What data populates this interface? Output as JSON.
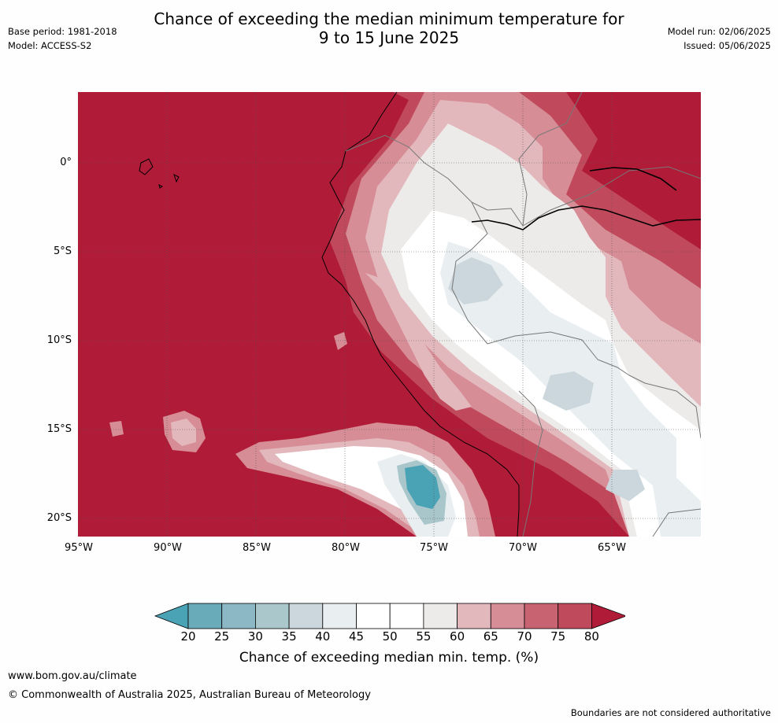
{
  "header": {
    "title_line1": "Chance of exceeding the median minimum temperature for",
    "title_line2": "9 to 15 June 2025",
    "base_period": "Base period: 1981-2018",
    "model": "Model: ACCESS-S2",
    "model_run": "Model run: 02/06/2025",
    "issued": "Issued: 05/06/2025"
  },
  "map": {
    "lat_labels": [
      "0°",
      "5°S",
      "10°S",
      "15°S",
      "20°S"
    ],
    "lon_labels": [
      "95°W",
      "90°W",
      "85°W",
      "80°W",
      "75°W",
      "70°W",
      "65°W"
    ],
    "colors": {
      "ocean_high": "#b01c38",
      "band_75": "#c04a5c",
      "band_70": "#d68d96",
      "band_65": "#e3b8bd",
      "band_55": "#ecebe9",
      "band_50": "#ffffff",
      "band_40": "#e9eff1",
      "band_35": "#cbd7dc",
      "band_30": "#a9c6cb",
      "band_25": "#88b7c3",
      "band_20": "#4aa3b5"
    }
  },
  "colorbar": {
    "ticks": [
      "20",
      "25",
      "30",
      "35",
      "40",
      "45",
      "50",
      "55",
      "60",
      "65",
      "70",
      "75",
      "80"
    ],
    "colors": [
      "#4aa3b5",
      "#6aabb9",
      "#8bb8c4",
      "#aac7cb",
      "#cbd7dc",
      "#e9eff1",
      "#ffffff",
      "#ffffff",
      "#ecebe9",
      "#e3b8bd",
      "#d68d96",
      "#c86472",
      "#be4a5b",
      "#b01c38"
    ],
    "title": "Chance of exceeding median min. temp. (%)"
  },
  "footer": {
    "url": "www.bom.gov.au/climate",
    "copyright": "© Commonwealth of Australia 2025, Australian Bureau of Meteorology",
    "disclaimer": "Boundaries are not considered authoritative"
  }
}
